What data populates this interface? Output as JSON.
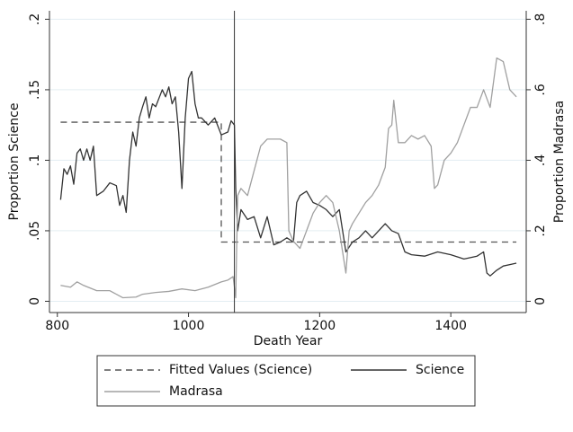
{
  "chart_data": {
    "type": "line",
    "x_label": "Death Year",
    "y_label": "Proportion Science",
    "y2_label": "Proportion Madrasa",
    "xlim": [
      788,
      1515
    ],
    "xticks": [
      800,
      1000,
      1200,
      1400
    ],
    "ylim": [
      -0.008,
      0.206
    ],
    "yticks": [
      0,
      {
        "value": 0.05,
        "label": ".05"
      },
      {
        "value": 0.1,
        "label": ".1"
      },
      {
        "value": 0.15,
        "label": ".15"
      },
      {
        "value": 0.2,
        "label": ".2"
      }
    ],
    "y2lim": [
      -0.032,
      0.824
    ],
    "y2ticks": [
      0,
      {
        "value": 0.2,
        "label": ".2"
      },
      {
        "value": 0.4,
        "label": ".4"
      },
      {
        "value": 0.6,
        "label": ".6"
      },
      {
        "value": 0.8,
        "label": ".8"
      }
    ],
    "grid": true,
    "vline": 1070,
    "legend": "bottom",
    "series": [
      {
        "name": "Fitted Values (Science)",
        "color": "#555555",
        "dash": true,
        "x": [
          805,
          1050,
          1050,
          1500
        ],
        "values": [
          0.127,
          0.127,
          0.042,
          0.042
        ]
      },
      {
        "name": "Science",
        "color": "#333333",
        "x": [
          805,
          810,
          815,
          820,
          825,
          830,
          835,
          840,
          845,
          850,
          855,
          860,
          870,
          880,
          890,
          895,
          900,
          905,
          910,
          915,
          920,
          925,
          930,
          935,
          940,
          945,
          950,
          960,
          965,
          970,
          975,
          980,
          985,
          990,
          995,
          1000,
          1005,
          1010,
          1015,
          1020,
          1030,
          1040,
          1050,
          1060,
          1065,
          1070,
          1072,
          1075,
          1080,
          1090,
          1100,
          1110,
          1120,
          1130,
          1140,
          1150,
          1160,
          1165,
          1170,
          1180,
          1190,
          1200,
          1210,
          1220,
          1230,
          1240,
          1250,
          1260,
          1270,
          1280,
          1290,
          1300,
          1310,
          1320,
          1330,
          1340,
          1360,
          1380,
          1400,
          1420,
          1440,
          1450,
          1455,
          1460,
          1470,
          1480,
          1490,
          1500
        ],
        "values": [
          0.072,
          0.094,
          0.09,
          0.096,
          0.083,
          0.105,
          0.108,
          0.1,
          0.108,
          0.1,
          0.11,
          0.075,
          0.078,
          0.084,
          0.082,
          0.068,
          0.075,
          0.063,
          0.1,
          0.12,
          0.11,
          0.13,
          0.138,
          0.145,
          0.13,
          0.14,
          0.138,
          0.15,
          0.145,
          0.152,
          0.14,
          0.145,
          0.12,
          0.08,
          0.13,
          0.158,
          0.163,
          0.14,
          0.13,
          0.13,
          0.125,
          0.13,
          0.118,
          0.12,
          0.128,
          0.125,
          0.08,
          0.05,
          0.065,
          0.058,
          0.06,
          0.045,
          0.06,
          0.04,
          0.042,
          0.045,
          0.042,
          0.07,
          0.075,
          0.078,
          0.07,
          0.068,
          0.065,
          0.06,
          0.065,
          0.035,
          0.042,
          0.045,
          0.05,
          0.045,
          0.05,
          0.055,
          0.05,
          0.048,
          0.035,
          0.033,
          0.032,
          0.035,
          0.033,
          0.03,
          0.032,
          0.035,
          0.02,
          0.018,
          0.022,
          0.025,
          0.026,
          0.027
        ]
      },
      {
        "name": "Madrasa",
        "color": "#a0a0a0",
        "axis": "y2",
        "x": [
          805,
          820,
          830,
          840,
          860,
          880,
          900,
          920,
          930,
          950,
          970,
          990,
          1010,
          1030,
          1050,
          1060,
          1068,
          1072,
          1075,
          1080,
          1090,
          1100,
          1110,
          1120,
          1130,
          1140,
          1150,
          1153,
          1160,
          1170,
          1180,
          1190,
          1200,
          1210,
          1220,
          1230,
          1240,
          1245,
          1250,
          1260,
          1270,
          1280,
          1290,
          1300,
          1305,
          1310,
          1313,
          1320,
          1330,
          1340,
          1350,
          1360,
          1370,
          1375,
          1380,
          1390,
          1400,
          1410,
          1420,
          1430,
          1440,
          1450,
          1460,
          1465,
          1470,
          1480,
          1490,
          1500
        ],
        "values": [
          0.045,
          0.04,
          0.055,
          0.045,
          0.03,
          0.03,
          0.01,
          0.012,
          0.02,
          0.025,
          0.028,
          0.035,
          0.03,
          0.04,
          0.055,
          0.06,
          0.07,
          0.01,
          0.3,
          0.32,
          0.3,
          0.37,
          0.44,
          0.46,
          0.46,
          0.46,
          0.45,
          0.2,
          0.17,
          0.15,
          0.2,
          0.25,
          0.28,
          0.3,
          0.28,
          0.2,
          0.08,
          0.2,
          0.22,
          0.25,
          0.28,
          0.3,
          0.33,
          0.38,
          0.49,
          0.5,
          0.57,
          0.45,
          0.45,
          0.47,
          0.46,
          0.47,
          0.44,
          0.32,
          0.33,
          0.4,
          0.42,
          0.45,
          0.5,
          0.55,
          0.55,
          0.6,
          0.55,
          0.62,
          0.69,
          0.68,
          0.6,
          0.58
        ]
      }
    ]
  }
}
